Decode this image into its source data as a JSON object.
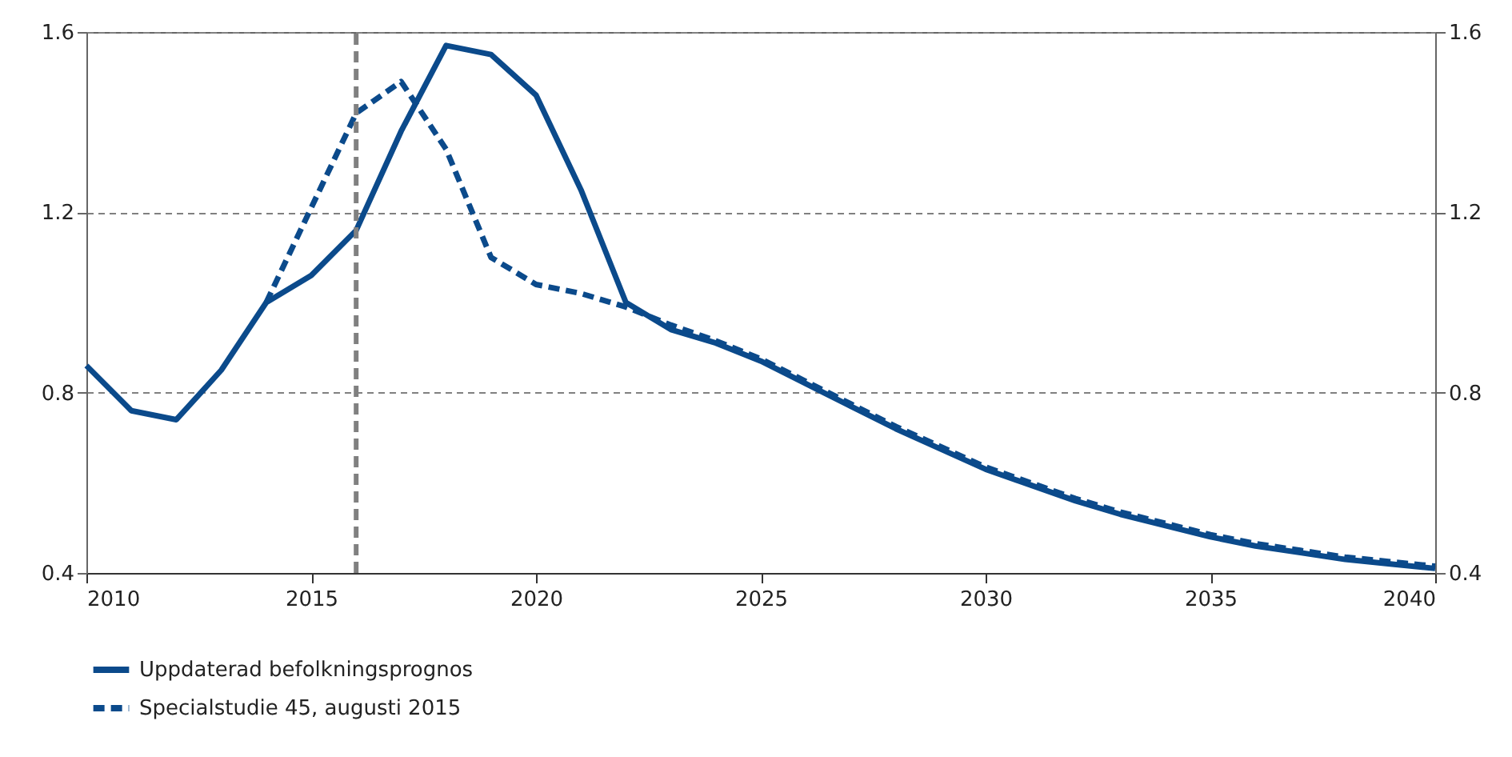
{
  "chart_data": {
    "type": "line",
    "x": [
      2010,
      2011,
      2012,
      2013,
      2014,
      2015,
      2016,
      2017,
      2018,
      2019,
      2020,
      2021,
      2022,
      2023,
      2024,
      2025,
      2026,
      2027,
      2028,
      2029,
      2030,
      2031,
      2032,
      2033,
      2034,
      2035,
      2036,
      2037,
      2038,
      2039,
      2040
    ],
    "series": [
      {
        "name": "Uppdaterad befolkningsprognos",
        "color": "#0b4a8b",
        "line_style": "solid",
        "values": [
          0.86,
          0.76,
          0.74,
          0.85,
          1.0,
          1.06,
          1.16,
          1.38,
          1.57,
          1.55,
          1.46,
          1.25,
          1.0,
          0.94,
          0.91,
          0.87,
          0.82,
          0.77,
          0.72,
          0.675,
          0.63,
          0.595,
          0.56,
          0.53,
          0.505,
          0.48,
          0.46,
          0.445,
          0.43,
          0.42,
          0.41
        ]
      },
      {
        "name": "Specialstudie 45, augusti 2015",
        "color": "#0b4a8b",
        "line_style": "dashed",
        "x": [
          2014,
          2015,
          2016,
          2017,
          2018,
          2019,
          2020,
          2021,
          2022,
          2023,
          2024,
          2025,
          2026,
          2027,
          2028,
          2029,
          2030,
          2031,
          2032,
          2033,
          2034,
          2035,
          2036,
          2037,
          2038,
          2039,
          2040
        ],
        "values": [
          1.0,
          1.21,
          1.42,
          1.49,
          1.34,
          1.1,
          1.04,
          1.02,
          0.99,
          0.95,
          0.915,
          0.875,
          0.825,
          0.775,
          0.725,
          0.68,
          0.635,
          0.6,
          0.565,
          0.535,
          0.51,
          0.485,
          0.465,
          0.45,
          0.435,
          0.425,
          0.415
        ]
      }
    ],
    "xlim": [
      2010,
      2040
    ],
    "xticks": [
      2010,
      2015,
      2020,
      2025,
      2030,
      2035,
      2040
    ],
    "ylim": [
      0.4,
      1.6
    ],
    "yticks": [
      0.4,
      0.8,
      1.2,
      1.6
    ],
    "y2lim": [
      0.4,
      1.6
    ],
    "y2ticks": [
      0.4,
      0.8,
      1.2,
      1.6
    ],
    "grid": "y",
    "legend": "bottom left",
    "ref_lines": [
      {
        "axis": "x",
        "value": 2016,
        "color": "#808080",
        "line_style": "dashed"
      }
    ]
  }
}
